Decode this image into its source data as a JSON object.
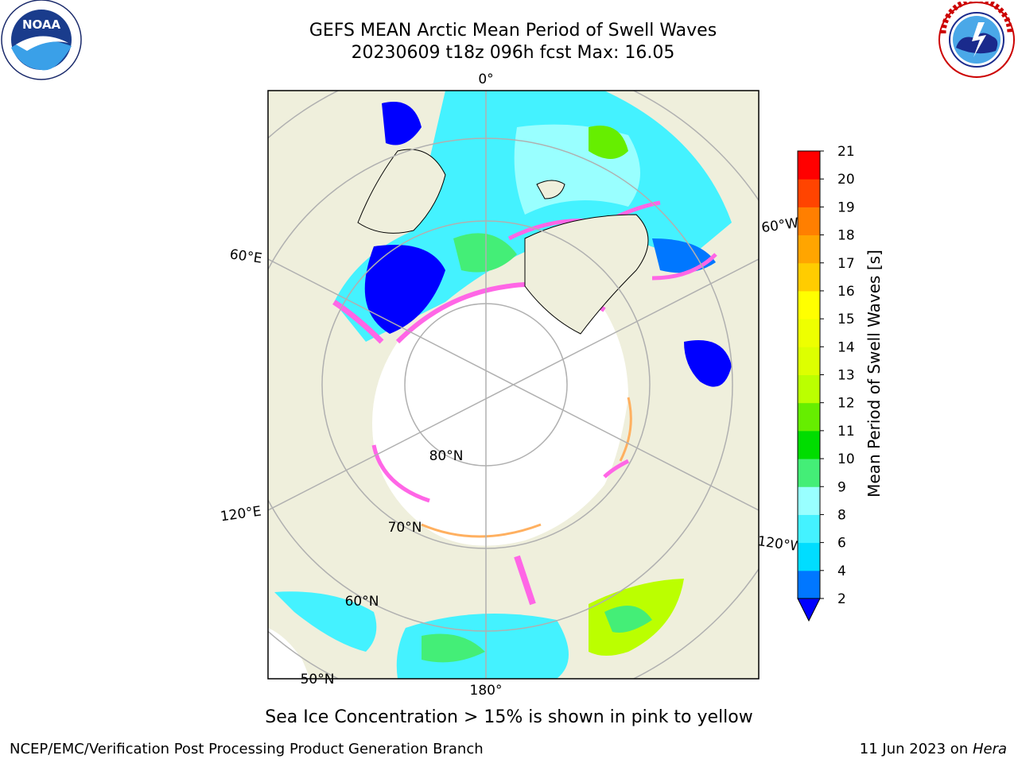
{
  "title": {
    "line1": "GEFS MEAN Arctic Mean Period of Swell Waves",
    "line2": "20230609 t18z 096h fcst   Max: 16.05"
  },
  "logos": {
    "left_icon": "noaa-logo-icon",
    "left_text": "NOAA",
    "right_icon": "national-weather-service-logo-icon"
  },
  "map": {
    "longitude_labels": [
      "0°",
      "60°E",
      "120°E",
      "180°",
      "60°W",
      "120°W"
    ],
    "latitude_labels": [
      "80°N",
      "70°N",
      "60°N",
      "50°N"
    ],
    "colors": {
      "land": "#efefdc",
      "ice": "#ffffff",
      "grid": "#b0b0b0",
      "ice_edge_pink": "#ff66e6",
      "ice_edge_orange": "#ffb060"
    }
  },
  "colorbar": {
    "label": "Mean Period of Swell Waves [s]",
    "ticks": [
      "2",
      "4",
      "6",
      "8",
      "9",
      "10",
      "11",
      "12",
      "13",
      "14",
      "15",
      "16",
      "17",
      "18",
      "19",
      "20",
      "21"
    ],
    "colors": [
      "#0077ff",
      "#00ddff",
      "#44f2ff",
      "#99ffff",
      "#44ee77",
      "#00dd00",
      "#66ee00",
      "#bbff00",
      "#ddff00",
      "#eeff00",
      "#ffff00",
      "#ffcc00",
      "#ffa500",
      "#ff7f00",
      "#ff4400",
      "#ff0000"
    ],
    "extend_color": "#0000ff"
  },
  "caption": "Sea Ice Concentration > 15% is shown in pink to yellow",
  "footer": {
    "left": "NCEP/EMC/Verification Post Processing Product Generation Branch",
    "right_prefix": "11 Jun 2023 on ",
    "right_machine": "Hera"
  }
}
